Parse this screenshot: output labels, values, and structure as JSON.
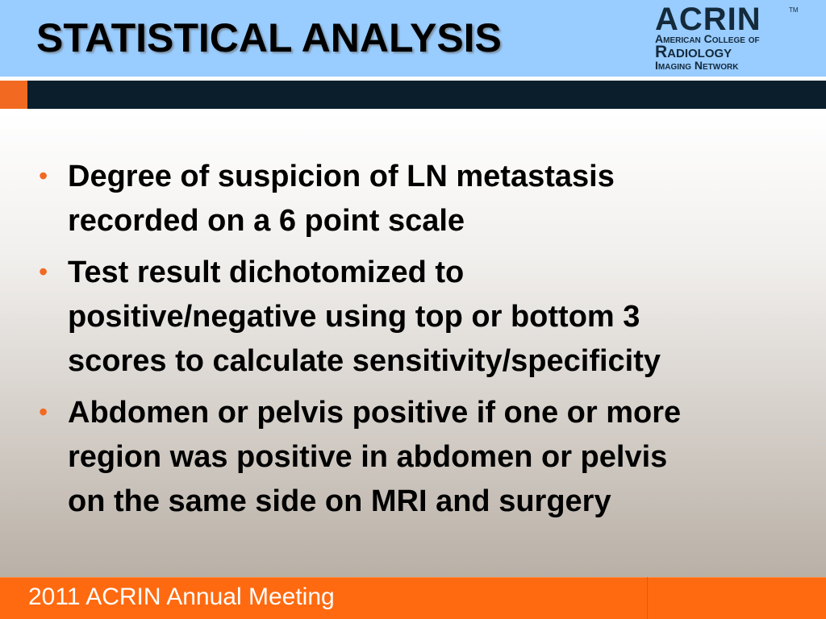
{
  "header": {
    "title": "STATISTICAL ANALYSIS"
  },
  "logo": {
    "name": "ACRIN",
    "mark": "TM",
    "line1": "American College of",
    "line2": "Radiology",
    "line3": "Imaging Network"
  },
  "bullets": [
    [
      "Degree of suspicion of LN metastasis",
      "recorded on a 6 point scale"
    ],
    [
      "Test result dichotomized to",
      "positive/negative using top or bottom 3",
      "scores to calculate sensitivity/specificity"
    ],
    [
      "Abdomen or pelvis positive if one or more",
      "region was positive in abdomen or pelvis",
      "on the same side on MRI and surgery"
    ]
  ],
  "footer": {
    "text": "2011 ACRIN Annual Meeting"
  }
}
